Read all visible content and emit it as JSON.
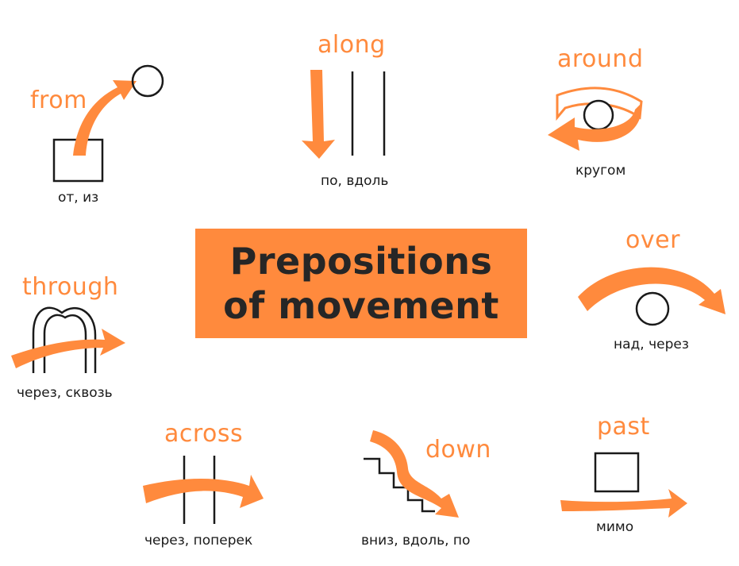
{
  "title": {
    "line1": "Prepositions",
    "line2": "of movement"
  },
  "accent_color": "#FF8A3D",
  "ink_color": "#1a1a1a",
  "prepositions": {
    "from": {
      "word": "from",
      "translation": "от, из"
    },
    "along": {
      "word": "along",
      "translation": "по, вдоль"
    },
    "around": {
      "word": "around",
      "translation": "кругом"
    },
    "through": {
      "word": "through",
      "translation": "через, сквозь"
    },
    "over": {
      "word": "over",
      "translation": "над, через"
    },
    "across": {
      "word": "across",
      "translation": "через, поперек"
    },
    "down": {
      "word": "down",
      "translation": "вниз, вдоль, по"
    },
    "past": {
      "word": "past",
      "translation": "мимо"
    }
  }
}
